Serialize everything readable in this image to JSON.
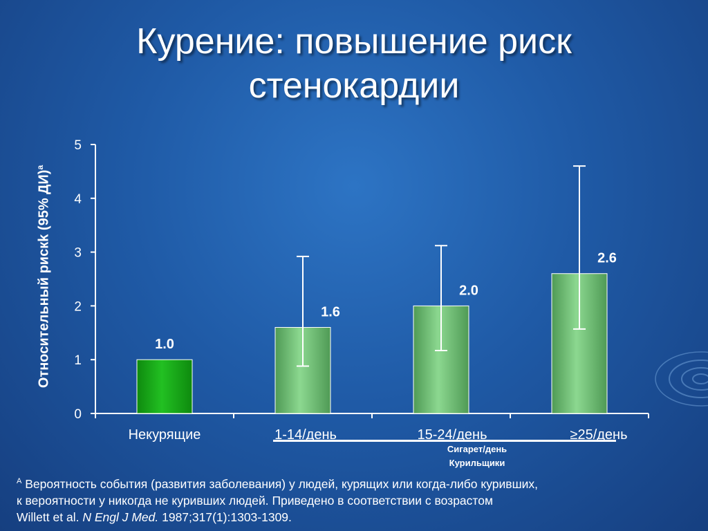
{
  "title_line1": "Курение: повышение риск",
  "title_line2": "стенокардии",
  "colors": {
    "background": "#1f5aa6",
    "bar_nonsmoker": "#22c022",
    "bar_smoker": "#8cd890",
    "axis": "#ffffff"
  },
  "group_label_line1": "Сигарет/день",
  "group_label_line2": "Курильщики",
  "footnote": {
    "marker": "A",
    "line1": "Вероятность события (развития заболевания) у людей, курящих или когда-либо куривших,",
    "line2": "к вероятности у никогда не куривших людей. Приведено в соответствии с возрастом",
    "citation_authors": "Willett et al.",
    "citation_journal": "N Engl J Med.",
    "citation_rest": "1987;317(1):1303-1309."
  },
  "chart_data": {
    "type": "bar",
    "ylabel": "Относительный рискk (95% ДИ)",
    "ylabel_superscript": "a",
    "ylim": [
      0,
      5
    ],
    "yticks": [
      0,
      1,
      2,
      3,
      4,
      5
    ],
    "categories": [
      "Некурящие",
      "1-14/день",
      "15-24/день",
      "≥25/день"
    ],
    "values": [
      1.0,
      1.6,
      2.0,
      2.6
    ],
    "value_labels": [
      "1.0",
      "1.6",
      "2.0",
      "2.6"
    ],
    "ci_low": [
      null,
      0.88,
      1.17,
      1.57
    ],
    "ci_high": [
      null,
      2.92,
      3.12,
      4.6
    ],
    "legend": "none",
    "grid": false
  }
}
